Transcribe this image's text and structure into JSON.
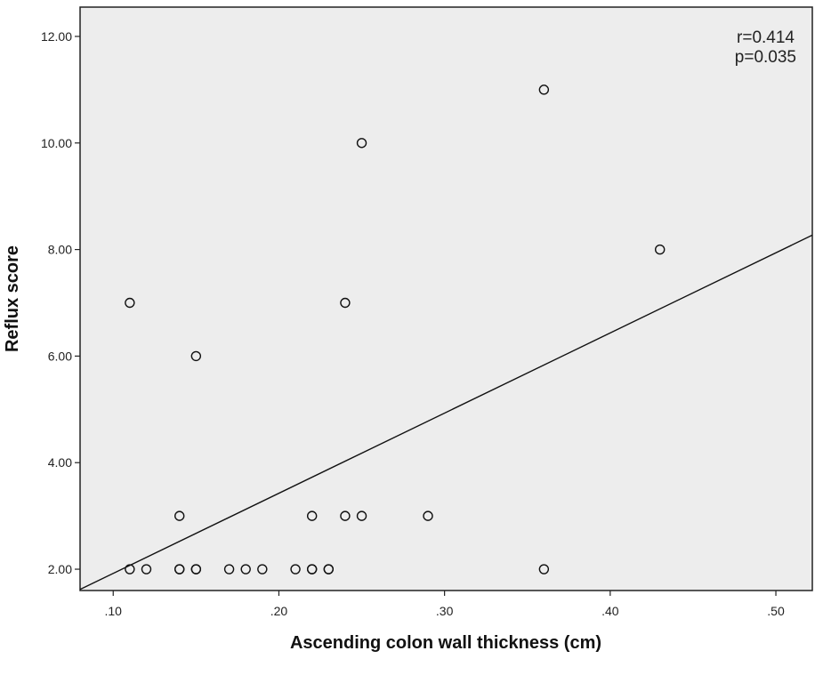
{
  "chart_data": {
    "type": "scatter",
    "xlabel": "Ascending colon wall thickness (cm)",
    "ylabel": "Reflux score",
    "xlim": [
      0.08,
      0.522
    ],
    "ylim": [
      1.6,
      12.55
    ],
    "x_ticks": [
      {
        "value": 0.1,
        "label": ".10"
      },
      {
        "value": 0.2,
        "label": ".20"
      },
      {
        "value": 0.3,
        "label": ".30"
      },
      {
        "value": 0.4,
        "label": ".40"
      },
      {
        "value": 0.5,
        "label": ".50"
      }
    ],
    "y_ticks": [
      {
        "value": 2,
        "label": "2.00"
      },
      {
        "value": 4,
        "label": "4.00"
      },
      {
        "value": 6,
        "label": "6.00"
      },
      {
        "value": 8,
        "label": "8.00"
      },
      {
        "value": 10,
        "label": "10.00"
      },
      {
        "value": 12,
        "label": "12.00"
      }
    ],
    "points": [
      {
        "x": 0.11,
        "y": 7
      },
      {
        "x": 0.11,
        "y": 2
      },
      {
        "x": 0.12,
        "y": 2
      },
      {
        "x": 0.14,
        "y": 3
      },
      {
        "x": 0.14,
        "y": 2
      },
      {
        "x": 0.14,
        "y": 2
      },
      {
        "x": 0.15,
        "y": 6
      },
      {
        "x": 0.15,
        "y": 2
      },
      {
        "x": 0.15,
        "y": 2
      },
      {
        "x": 0.17,
        "y": 2
      },
      {
        "x": 0.18,
        "y": 2
      },
      {
        "x": 0.19,
        "y": 2
      },
      {
        "x": 0.21,
        "y": 2
      },
      {
        "x": 0.22,
        "y": 3
      },
      {
        "x": 0.22,
        "y": 2
      },
      {
        "x": 0.22,
        "y": 2
      },
      {
        "x": 0.23,
        "y": 2
      },
      {
        "x": 0.23,
        "y": 2
      },
      {
        "x": 0.24,
        "y": 7
      },
      {
        "x": 0.24,
        "y": 3
      },
      {
        "x": 0.25,
        "y": 10
      },
      {
        "x": 0.25,
        "y": 3
      },
      {
        "x": 0.29,
        "y": 3
      },
      {
        "x": 0.36,
        "y": 11
      },
      {
        "x": 0.36,
        "y": 2
      },
      {
        "x": 0.43,
        "y": 8
      }
    ],
    "fit_line": {
      "x": [
        0.08,
        0.522
      ],
      "y": [
        1.62,
        8.27
      ]
    },
    "annotations": [
      "r=0.414",
      "p=0.035"
    ],
    "grid": false,
    "background": "#ededed"
  }
}
